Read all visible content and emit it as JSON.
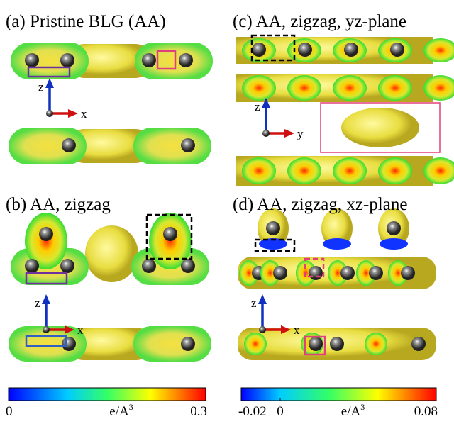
{
  "panels": [
    {
      "title": "(a) Pristine BLG (AA)",
      "axes": [
        "z",
        "x"
      ]
    },
    {
      "title": "(b) AA, zigzag",
      "axes": [
        "z",
        "x"
      ]
    },
    {
      "title": "(c) AA, zigzag, yz-plane",
      "axes": [
        "z",
        "y"
      ]
    },
    {
      "title": "(d) AA, zigzag, xz-plane",
      "axes": [
        "z",
        "x"
      ]
    }
  ],
  "colorbars": [
    {
      "lim": [
        0,
        0.3
      ],
      "ticks": [
        0,
        0.3
      ],
      "unit": "e/A",
      "unit_sup": "3"
    },
    {
      "lim": [
        -0.02,
        0.08
      ],
      "ticks": [
        -0.02,
        0,
        0.08
      ],
      "unit": "e/A",
      "unit_sup": "3"
    }
  ]
}
